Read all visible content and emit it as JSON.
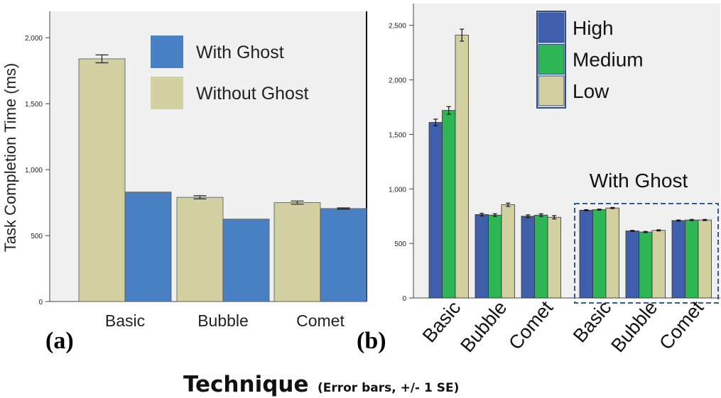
{
  "chart_data": [
    {
      "panel": "(a)",
      "type": "bar",
      "ylabel": "Task Completion Time (ms)",
      "ylim": [
        0,
        2200
      ],
      "yticks": [
        0,
        500,
        1000,
        1500,
        2000
      ],
      "ytick_labels": [
        "0",
        "500",
        "1,000",
        "1,500",
        "2,000"
      ],
      "categories": [
        "Basic",
        "Bubble",
        "Comet"
      ],
      "series": [
        {
          "name": "Without Ghost",
          "color": "#d2cfa0",
          "values": [
            1840,
            790,
            750
          ],
          "errors": [
            30,
            12,
            12
          ]
        },
        {
          "name": "With Ghost",
          "color": "#4a80c4",
          "values": [
            830,
            625,
            705
          ],
          "errors": [
            0,
            0,
            5
          ]
        }
      ],
      "legend_placement": "top-right",
      "background": "#f0f0f0"
    },
    {
      "panel": "(b)",
      "type": "bar",
      "ylim": [
        0,
        2700
      ],
      "yticks": [
        0,
        500,
        1000,
        1500,
        2000,
        2500
      ],
      "ytick_labels": [
        "0",
        "500",
        "1,000",
        "1,500",
        "2,000",
        "2,500"
      ],
      "categories": [
        "Basic",
        "Bubble",
        "Comet",
        "Basic",
        "Bubble",
        "Comet"
      ],
      "series": [
        {
          "name": "High",
          "color": "#3f5fac",
          "values": [
            1610,
            765,
            750,
            805,
            615,
            710
          ],
          "errors": [
            30,
            12,
            12,
            5,
            5,
            5
          ]
        },
        {
          "name": "Medium",
          "color": "#2fb654",
          "values": [
            1720,
            760,
            760,
            810,
            605,
            715
          ],
          "errors": [
            35,
            12,
            12,
            5,
            5,
            5
          ]
        },
        {
          "name": "Low",
          "color": "#d2cfa0",
          "values": [
            2410,
            855,
            740,
            825,
            620,
            715
          ],
          "errors": [
            55,
            15,
            15,
            5,
            5,
            5
          ]
        }
      ],
      "annotation": "With Ghost",
      "legend_placement": "top-right",
      "background": "#f0f0f0"
    }
  ],
  "labels": {
    "panel_a": "(a)",
    "panel_b": "(b)",
    "caption_main": "Technique",
    "caption_sub": "(Error bars, +/- 1 SE)"
  }
}
